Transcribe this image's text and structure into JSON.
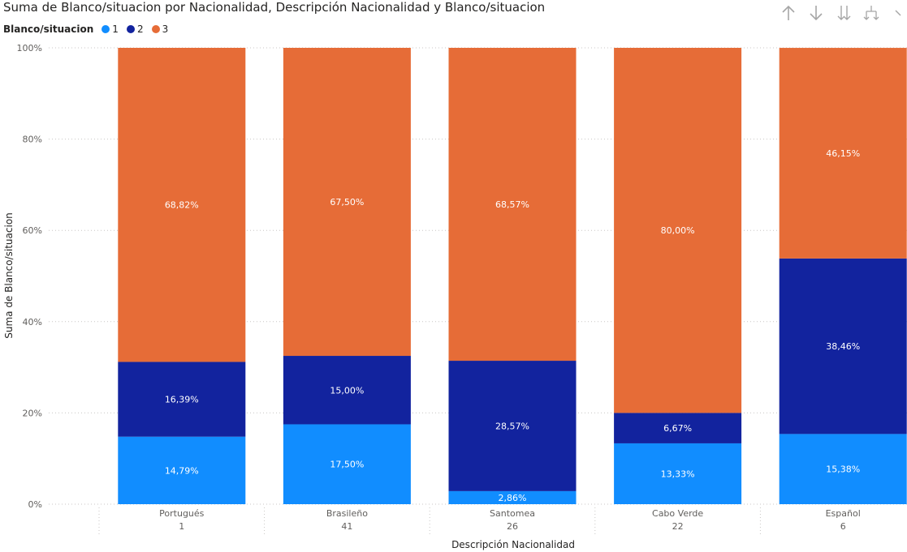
{
  "title": "Suma de Blanco/situacion por Nacionalidad, Descripción Nacionalidad y Blanco/situacion",
  "legend": {
    "title": "Blanco/situacion",
    "items": [
      {
        "label": "1",
        "color": "#118DFF"
      },
      {
        "label": "2",
        "color": "#12239E"
      },
      {
        "label": "3",
        "color": "#E66C37"
      }
    ]
  },
  "toolbar": {
    "icons": [
      "drill-up-icon",
      "drill-down-icon",
      "expand-next-level-icon",
      "expand-hierarchy-icon",
      "more-options-icon"
    ]
  },
  "chart_data": {
    "type": "bar",
    "stacked": "100%",
    "xlabel": "Descripción Nacionalidad",
    "ylabel": "Suma de Blanco/situacion",
    "ylim": [
      0,
      100
    ],
    "yticks": [
      "0%",
      "20%",
      "40%",
      "60%",
      "80%",
      "100%"
    ],
    "categories": [
      {
        "name": "Portugués",
        "sub": "1"
      },
      {
        "name": "Brasileño",
        "sub": "41"
      },
      {
        "name": "Santomea",
        "sub": "26"
      },
      {
        "name": "Cabo Verde",
        "sub": "22"
      },
      {
        "name": "Español",
        "sub": "6"
      }
    ],
    "series": [
      {
        "name": "1",
        "color": "#118DFF",
        "values": [
          14.79,
          17.5,
          2.86,
          13.33,
          15.38
        ],
        "labels": [
          "14,79%",
          "17,50%",
          "2,86%",
          "13,33%",
          "15,38%"
        ]
      },
      {
        "name": "2",
        "color": "#12239E",
        "values": [
          16.39,
          15.0,
          28.57,
          6.67,
          38.46
        ],
        "labels": [
          "16,39%",
          "15,00%",
          "28,57%",
          "6,67%",
          "38,46%"
        ]
      },
      {
        "name": "3",
        "color": "#E66C37",
        "values": [
          68.82,
          67.5,
          68.57,
          80.0,
          46.15
        ],
        "labels": [
          "68,82%",
          "67,50%",
          "68,57%",
          "80,00%",
          "46,15%"
        ]
      }
    ],
    "grid": true,
    "legend_position": "top-left"
  }
}
